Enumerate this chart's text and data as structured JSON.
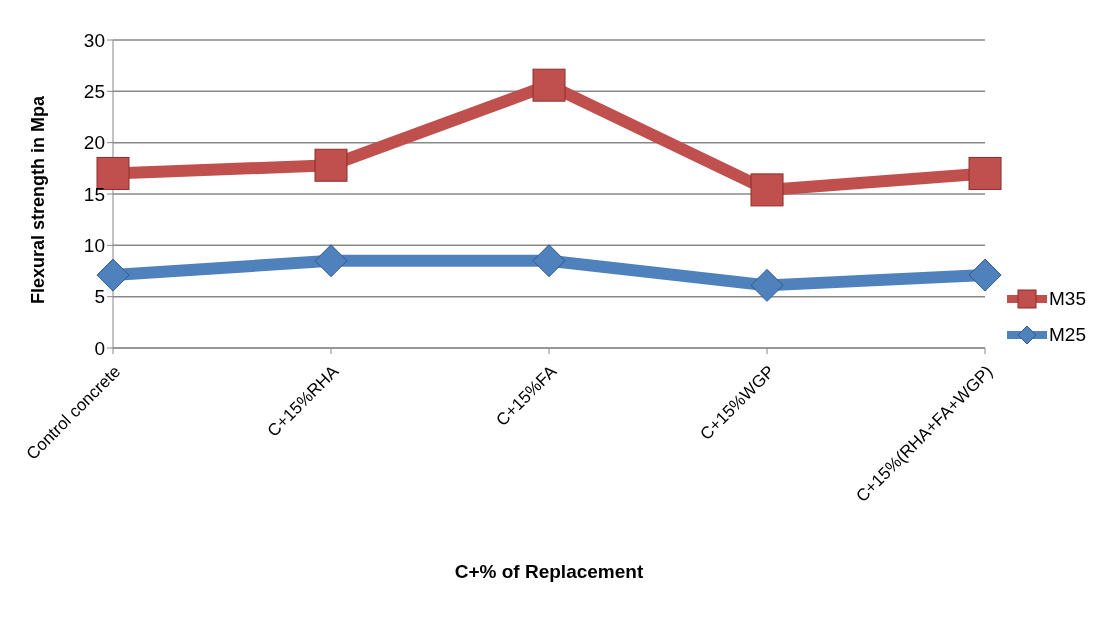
{
  "chart_data": {
    "type": "line",
    "xlabel": "C+% of Replacement",
    "ylabel": "Flexural strength in Mpa",
    "categories": [
      "Control concrete",
      "C+15%RHA",
      "C+15%FA",
      "C+15%WGP",
      "C+15%(RHA+FA+WGP)"
    ],
    "series": [
      {
        "name": "M35",
        "color": "#c0504d",
        "marker": "square",
        "values": [
          17.0,
          17.8,
          25.6,
          15.4,
          17.0
        ]
      },
      {
        "name": "M25",
        "color": "#4f81bd",
        "marker": "diamond",
        "values": [
          7.1,
          8.5,
          8.5,
          6.1,
          7.1
        ]
      }
    ],
    "ylim": [
      0,
      30
    ],
    "yticks": [
      0,
      5,
      10,
      15,
      20,
      25,
      30
    ],
    "grid": "y",
    "legend": "right"
  }
}
